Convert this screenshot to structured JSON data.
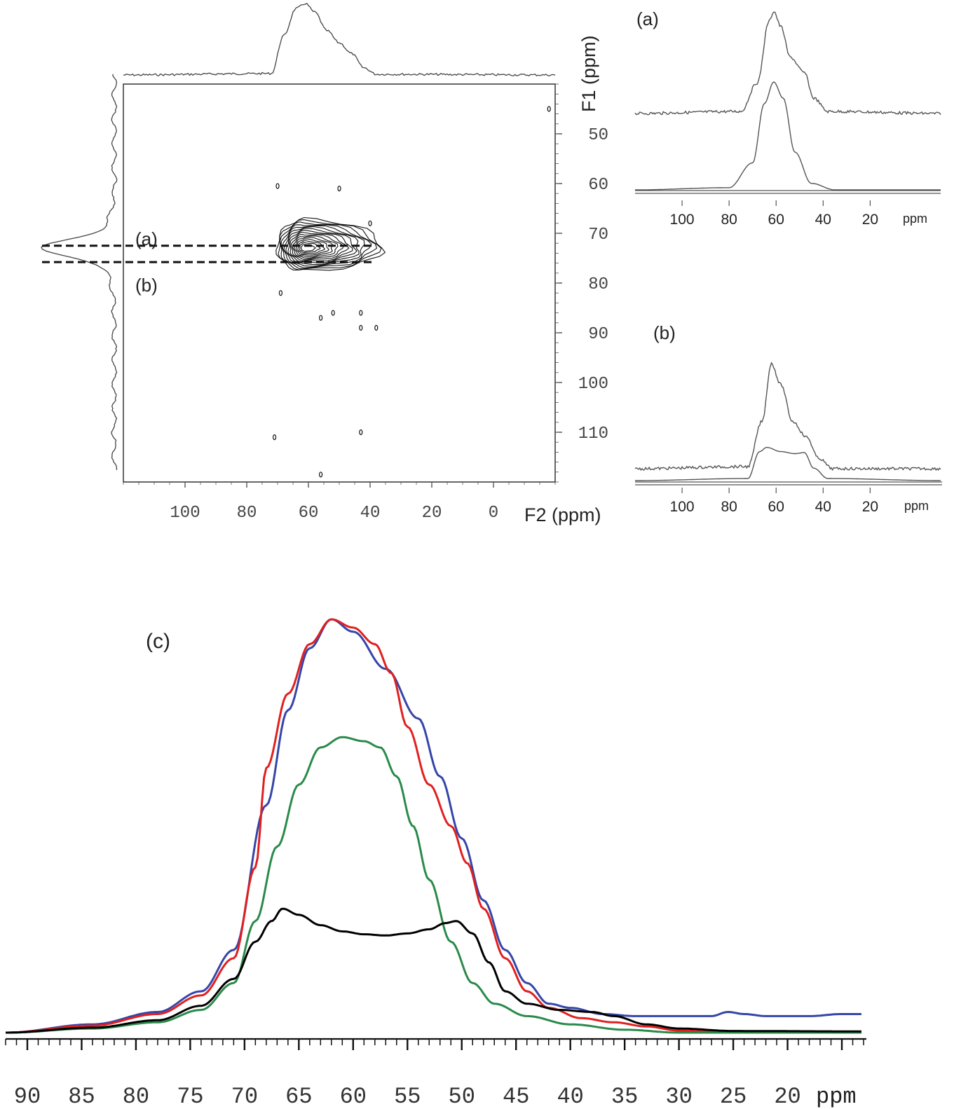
{
  "chart_data": [
    {
      "type": "contour",
      "panel": "2D",
      "x_axis_label": "F2 (ppm)",
      "y_axis_label": "F1 (ppm)",
      "x_ticks": [
        100,
        80,
        60,
        40,
        20,
        0
      ],
      "y_ticks": [
        50,
        60,
        70,
        80,
        90,
        100,
        110
      ],
      "xlim": [
        120,
        -20
      ],
      "ylim": [
        40,
        120
      ],
      "slice_labels": [
        {
          "label": "(a)",
          "f1": 72.5
        },
        {
          "label": "(b)",
          "f1": 75.8
        }
      ],
      "main_peak": {
        "f2": 60,
        "f1": 73
      },
      "projections": {
        "f2_peak_ppm": 60,
        "f1_peak_ppm": 73
      }
    },
    {
      "type": "line",
      "panel": "(a)",
      "label": "(a)",
      "x_unit": "ppm",
      "x_ticks": [
        100,
        80,
        60,
        40,
        20
      ],
      "xlim": [
        120,
        -10
      ],
      "series": [
        {
          "name": "",
          "points": [
            [
              120,
              0.0
            ],
            [
              75,
              0.02
            ],
            [
              68,
              0.3
            ],
            [
              63,
              0.9
            ],
            [
              61,
              1.0
            ],
            [
              58,
              0.85
            ],
            [
              54,
              0.55
            ],
            [
              48,
              0.4
            ],
            [
              44,
              0.15
            ],
            [
              38,
              0.02
            ],
            [
              -10,
              0.0
            ]
          ]
        },
        {
          "name": "",
          "points": [
            [
              120,
              0.0
            ],
            [
              80,
              0.02
            ],
            [
              70,
              0.25
            ],
            [
              65,
              0.8
            ],
            [
              61,
              1.0
            ],
            [
              57,
              0.85
            ],
            [
              52,
              0.35
            ],
            [
              45,
              0.06
            ],
            [
              35,
              0.0
            ],
            [
              -10,
              0.0
            ]
          ]
        }
      ]
    },
    {
      "type": "line",
      "panel": "(b)",
      "label": "(b)",
      "x_unit": "ppm",
      "x_ticks": [
        100,
        80,
        60,
        40,
        20
      ],
      "xlim": [
        120,
        -10
      ],
      "series": [
        {
          "name": "",
          "points": [
            [
              120,
              0.0
            ],
            [
              72,
              0.02
            ],
            [
              66,
              0.45
            ],
            [
              62,
              1.0
            ],
            [
              58,
              0.8
            ],
            [
              53,
              0.45
            ],
            [
              47,
              0.3
            ],
            [
              42,
              0.1
            ],
            [
              36,
              0.0
            ],
            [
              -10,
              0.0
            ]
          ]
        },
        {
          "name": "",
          "points": [
            [
              120,
              0.0
            ],
            [
              72,
              0.02
            ],
            [
              67,
              0.28
            ],
            [
              64,
              0.32
            ],
            [
              58,
              0.28
            ],
            [
              52,
              0.26
            ],
            [
              48,
              0.27
            ],
            [
              44,
              0.12
            ],
            [
              38,
              0.02
            ],
            [
              -10,
              0.0
            ]
          ]
        }
      ]
    },
    {
      "type": "line",
      "panel": "(c)",
      "label": "(c)",
      "x_unit": "ppm",
      "x_ticks": [
        90,
        85,
        80,
        75,
        70,
        65,
        60,
        55,
        50,
        45,
        40,
        35,
        30,
        25,
        20
      ],
      "xlim": [
        92,
        13
      ],
      "ylim": [
        0,
        1.02
      ],
      "series": [
        {
          "name": "",
          "color": "#3545a8",
          "points": [
            [
              92,
              0.0
            ],
            [
              84,
              0.02
            ],
            [
              78,
              0.05
            ],
            [
              74,
              0.1
            ],
            [
              71,
              0.2
            ],
            [
              68,
              0.55
            ],
            [
              66,
              0.78
            ],
            [
              64,
              0.93
            ],
            [
              62,
              1.0
            ],
            [
              60,
              0.97
            ],
            [
              57,
              0.88
            ],
            [
              54,
              0.76
            ],
            [
              52,
              0.62
            ],
            [
              50,
              0.47
            ],
            [
              48,
              0.32
            ],
            [
              46,
              0.2
            ],
            [
              44,
              0.12
            ],
            [
              42,
              0.07
            ],
            [
              40,
              0.06
            ],
            [
              37,
              0.045
            ],
            [
              34,
              0.04
            ],
            [
              30,
              0.04
            ],
            [
              27,
              0.04
            ],
            [
              25.5,
              0.05
            ],
            [
              24,
              0.045
            ],
            [
              22,
              0.04
            ],
            [
              18,
              0.04
            ],
            [
              15,
              0.045
            ],
            [
              13,
              0.045
            ]
          ]
        },
        {
          "name": "",
          "color": "#e02020",
          "points": [
            [
              92,
              0.0
            ],
            [
              84,
              0.017
            ],
            [
              78,
              0.045
            ],
            [
              74,
              0.09
            ],
            [
              71,
              0.18
            ],
            [
              69,
              0.4
            ],
            [
              68,
              0.64
            ],
            [
              66,
              0.82
            ],
            [
              64,
              0.94
            ],
            [
              62,
              1.0
            ],
            [
              60,
              0.98
            ],
            [
              58,
              0.94
            ],
            [
              56.5,
              0.87
            ],
            [
              55,
              0.74
            ],
            [
              53,
              0.6
            ],
            [
              51,
              0.5
            ],
            [
              49.5,
              0.41
            ],
            [
              48,
              0.3
            ],
            [
              46,
              0.18
            ],
            [
              44,
              0.1
            ],
            [
              42,
              0.06
            ],
            [
              39,
              0.035
            ],
            [
              36,
              0.025
            ],
            [
              33,
              0.015
            ],
            [
              30,
              0.005
            ],
            [
              25,
              0.0
            ],
            [
              13,
              0.0
            ]
          ]
        },
        {
          "name": "",
          "color": "#2a8a4a",
          "points": [
            [
              92,
              0.0
            ],
            [
              84,
              0.01
            ],
            [
              78,
              0.025
            ],
            [
              74,
              0.055
            ],
            [
              71,
              0.12
            ],
            [
              69,
              0.27
            ],
            [
              67,
              0.45
            ],
            [
              65,
              0.6
            ],
            [
              63,
              0.69
            ],
            [
              61,
              0.715
            ],
            [
              59,
              0.705
            ],
            [
              57.5,
              0.69
            ],
            [
              56,
              0.62
            ],
            [
              54.5,
              0.5
            ],
            [
              53,
              0.37
            ],
            [
              51,
              0.22
            ],
            [
              49,
              0.12
            ],
            [
              47,
              0.07
            ],
            [
              44,
              0.04
            ],
            [
              40,
              0.02
            ],
            [
              35,
              0.007
            ],
            [
              30,
              0.0
            ],
            [
              13,
              0.0
            ]
          ]
        },
        {
          "name": "",
          "color": "#000000",
          "points": [
            [
              92,
              0.0
            ],
            [
              84,
              0.012
            ],
            [
              78,
              0.03
            ],
            [
              74,
              0.065
            ],
            [
              71,
              0.13
            ],
            [
              69,
              0.22
            ],
            [
              67.5,
              0.27
            ],
            [
              66.5,
              0.3
            ],
            [
              65,
              0.285
            ],
            [
              63,
              0.26
            ],
            [
              61,
              0.245
            ],
            [
              59,
              0.238
            ],
            [
              57,
              0.235
            ],
            [
              55,
              0.24
            ],
            [
              53,
              0.25
            ],
            [
              51.5,
              0.265
            ],
            [
              50.5,
              0.27
            ],
            [
              49,
              0.24
            ],
            [
              47.5,
              0.17
            ],
            [
              46,
              0.1
            ],
            [
              44,
              0.07
            ],
            [
              41,
              0.055
            ],
            [
              38,
              0.05
            ],
            [
              36,
              0.04
            ],
            [
              33,
              0.02
            ],
            [
              30,
              0.01
            ],
            [
              25,
              0.004
            ],
            [
              13,
              0.003
            ]
          ]
        }
      ]
    }
  ]
}
